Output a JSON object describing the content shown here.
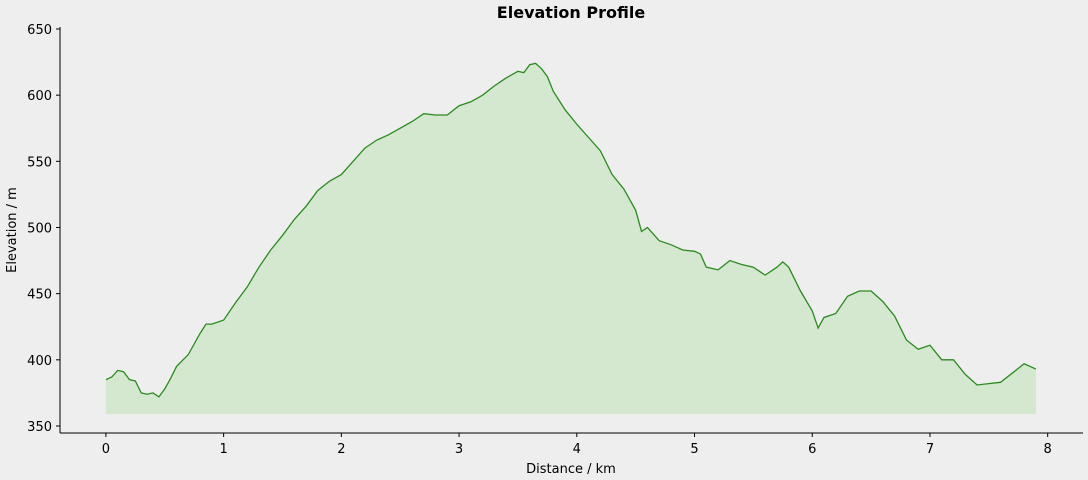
{
  "chart_data": {
    "type": "area",
    "title": "Elevation Profile",
    "x_label": "Distance / km",
    "y_label": "Elevation / m",
    "x": [
      0,
      0.05,
      0.1,
      0.15,
      0.2,
      0.25,
      0.3,
      0.35,
      0.4,
      0.45,
      0.5,
      0.55,
      0.6,
      0.7,
      0.8,
      0.85,
      0.9,
      1.0,
      1.1,
      1.2,
      1.3,
      1.4,
      1.5,
      1.6,
      1.7,
      1.8,
      1.9,
      2.0,
      2.1,
      2.2,
      2.3,
      2.4,
      2.5,
      2.6,
      2.7,
      2.8,
      2.9,
      3.0,
      3.1,
      3.2,
      3.3,
      3.4,
      3.5,
      3.55,
      3.6,
      3.65,
      3.7,
      3.75,
      3.8,
      3.9,
      4.0,
      4.1,
      4.2,
      4.3,
      4.4,
      4.5,
      4.55,
      4.6,
      4.7,
      4.8,
      4.9,
      5.0,
      5.05,
      5.1,
      5.2,
      5.3,
      5.4,
      5.5,
      5.6,
      5.7,
      5.75,
      5.8,
      5.9,
      6.0,
      6.05,
      6.1,
      6.2,
      6.3,
      6.4,
      6.5,
      6.6,
      6.7,
      6.8,
      6.9,
      7.0,
      7.1,
      7.2,
      7.3,
      7.4,
      7.5,
      7.6,
      7.7,
      7.8,
      7.9
    ],
    "values": [
      385,
      387,
      392,
      391,
      385,
      384,
      375,
      374,
      375,
      372,
      378,
      386,
      395,
      404,
      420,
      427,
      427,
      430,
      443,
      455,
      470,
      483,
      494,
      506,
      516,
      528,
      535,
      540,
      550,
      560,
      566,
      570,
      575,
      580,
      586,
      585,
      585,
      592,
      595,
      600,
      607,
      613,
      618,
      617,
      623,
      624,
      620,
      614,
      603,
      589,
      578,
      568,
      558,
      540,
      529,
      513,
      497,
      500,
      490,
      487,
      483,
      482,
      480,
      470,
      468,
      475,
      472,
      470,
      464,
      470,
      474,
      470,
      452,
      437,
      424,
      432,
      435,
      448,
      452,
      452,
      444,
      433,
      415,
      408,
      411,
      400,
      400,
      389,
      381,
      382,
      383,
      390,
      397,
      393
    ],
    "baseline": 359,
    "color": "#2b8a1f",
    "fill_color": "#d4e8cf",
    "xlim": [
      -0.39,
      8.3
    ],
    "ylim": [
      344.7,
      651.5
    ],
    "xticks": [
      0,
      1,
      2,
      3,
      4,
      5,
      6,
      7,
      8
    ],
    "yticks": [
      350,
      400,
      450,
      500,
      550,
      600,
      650
    ]
  }
}
